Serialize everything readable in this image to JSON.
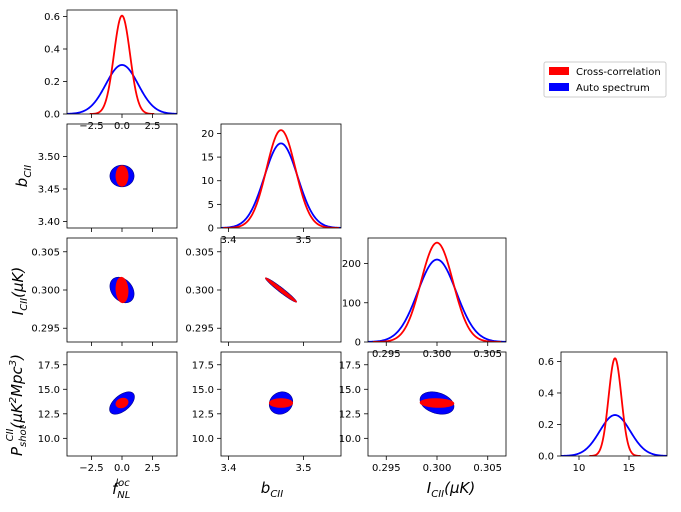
{
  "legend": {
    "placement": "upper-right",
    "entries": [
      {
        "label": "Cross-correlation",
        "color": "#ff0000"
      },
      {
        "label": "Auto spectrum",
        "color": "#0000ff"
      }
    ]
  },
  "axis_labels": {
    "f_nl_base": "f",
    "f_nl_sub": "NL",
    "f_nl_sup": "loc",
    "b_cii_base": "b",
    "b_cii_sub": "CII",
    "i_cii_base": "I",
    "i_cii_sub": "CII",
    "i_cii_unit": "(μK)",
    "p_shot_base": "P",
    "p_shot_sub": "shot",
    "p_shot_sup": "CII",
    "p_shot_unit_open": "(μK",
    "p_shot_unit_k_sup": "2",
    "p_shot_unit_mid": "Mpc",
    "p_shot_unit_mpc_sup": "3",
    "p_shot_unit_close": ")"
  },
  "chart_data": {
    "type": "corner",
    "parameters": [
      "f_NL^loc",
      "b_CII",
      "I_CII(μK)",
      "P_shot^CII(μK^2 Mpc^3)"
    ],
    "fiducial": {
      "f_nl": 0.0,
      "b_cii": 3.47,
      "i_cii": 0.3,
      "p_shot": 13.6
    },
    "diagonals": [
      {
        "param": "f_nl",
        "xlim": [
          -4.5,
          4.5
        ],
        "ylim": [
          0,
          0.64
        ],
        "xticks": [
          -2.5,
          0.0,
          2.5
        ],
        "xtick_labels": [
          "−2.5",
          "0.0",
          "2.5"
        ],
        "yticks": [
          0.0,
          0.2,
          0.4,
          0.6
        ],
        "ytick_labels": [
          "0.0",
          "0.2",
          "0.4",
          "0.6"
        ],
        "series": [
          {
            "name": "Cross-correlation",
            "color": "#ff0000",
            "mean": 0.0,
            "sigma": 0.66,
            "peak": 0.605
          },
          {
            "name": "Auto spectrum",
            "color": "#0000ff",
            "mean": 0.0,
            "sigma": 1.32,
            "peak": 0.302
          }
        ]
      },
      {
        "param": "b_cii",
        "xlim": [
          3.39,
          3.55
        ],
        "ylim": [
          0,
          22
        ],
        "xticks": [
          3.4,
          3.5
        ],
        "xtick_labels": [
          "3.4",
          "3.5"
        ],
        "yticks": [
          0,
          5,
          10,
          15,
          20
        ],
        "ytick_labels": [
          "0",
          "5",
          "10",
          "15",
          "20"
        ],
        "series": [
          {
            "name": "Cross-correlation",
            "color": "#ff0000",
            "mean": 3.47,
            "sigma": 0.0193,
            "peak": 20.7
          },
          {
            "name": "Auto spectrum",
            "color": "#0000ff",
            "mean": 3.47,
            "sigma": 0.0222,
            "peak": 17.9
          }
        ]
      },
      {
        "param": "i_cii",
        "xlim": [
          0.2932,
          0.3068
        ],
        "ylim": [
          0,
          265
        ],
        "xticks": [
          0.295,
          0.3,
          0.305
        ],
        "xtick_labels": [
          "0.295",
          "0.300",
          "0.305"
        ],
        "yticks": [
          0,
          100,
          200
        ],
        "ytick_labels": [
          "0",
          "100",
          "200"
        ],
        "series": [
          {
            "name": "Cross-correlation",
            "color": "#ff0000",
            "mean": 0.3,
            "sigma": 0.00158,
            "peak": 253
          },
          {
            "name": "Auto spectrum",
            "color": "#0000ff",
            "mean": 0.3,
            "sigma": 0.0019,
            "peak": 210
          }
        ]
      },
      {
        "param": "p_shot",
        "xlim": [
          8.2,
          18.8
        ],
        "ylim": [
          0,
          0.66
        ],
        "xticks": [
          10,
          15
        ],
        "xtick_labels": [
          "10",
          "15"
        ],
        "yticks": [
          0.0,
          0.2,
          0.4,
          0.6
        ],
        "ytick_labels": [
          "0.0",
          "0.2",
          "0.4",
          "0.6"
        ],
        "series": [
          {
            "name": "Cross-correlation",
            "color": "#ff0000",
            "mean": 13.6,
            "sigma": 0.64,
            "peak": 0.62
          },
          {
            "name": "Auto spectrum",
            "color": "#0000ff",
            "mean": 13.6,
            "sigma": 1.53,
            "peak": 0.26
          }
        ]
      }
    ],
    "offdiag_axes": {
      "f_nl": {
        "lim": [
          -4.5,
          4.5
        ],
        "ticks": [
          -2.5,
          0.0,
          2.5
        ],
        "tick_labels": [
          "−2.5",
          "0.0",
          "2.5"
        ]
      },
      "b_cii": {
        "lim": [
          3.39,
          3.55
        ],
        "ticks": [
          3.4,
          3.45,
          3.5
        ],
        "tick_labels": [
          "3.40",
          "3.45",
          "3.50"
        ]
      },
      "b_cii_x": {
        "lim": [
          3.39,
          3.55
        ],
        "ticks": [
          3.4,
          3.5
        ],
        "tick_labels": [
          "3.4",
          "3.5"
        ]
      },
      "i_cii": {
        "lim": [
          0.2932,
          0.3068
        ],
        "ticks": [
          0.295,
          0.3,
          0.305
        ],
        "tick_labels": [
          "0.295",
          "0.300",
          "0.305"
        ]
      },
      "p_shot": {
        "lim": [
          8.2,
          18.8
        ],
        "ticks": [
          10.0,
          12.5,
          15.0,
          17.5
        ],
        "tick_labels": [
          "10.0",
          "12.5",
          "15.0",
          "17.5"
        ]
      }
    },
    "ellipses": [
      {
        "x": "f_nl",
        "y": "b_cii",
        "auto": {
          "sx": 0.65,
          "sy": 0.011,
          "rho": 0.0
        },
        "cross": {
          "sx": 0.33,
          "sy": 0.0105,
          "rho": 0.0
        }
      },
      {
        "x": "f_nl",
        "y": "i_cii",
        "auto": {
          "sx": 0.65,
          "sy": 0.0011,
          "rho": -0.3
        },
        "cross": {
          "sx": 0.33,
          "sy": 0.0011,
          "rho": -0.1
        }
      },
      {
        "x": "b_cii",
        "y": "i_cii",
        "auto": {
          "sx": 0.0137,
          "sy": 0.00105,
          "rho": -0.97
        },
        "cross": {
          "sx": 0.0137,
          "sy": 0.00105,
          "rho": -0.985
        }
      },
      {
        "x": "f_nl",
        "y": "p_shot",
        "auto": {
          "sx": 0.67,
          "sy": 0.75,
          "rho": 0.55
        },
        "cross": {
          "sx": 0.33,
          "sy": 0.33,
          "rho": 0.2
        }
      },
      {
        "x": "b_cii",
        "y": "p_shot",
        "auto": {
          "sx": 0.0103,
          "sy": 0.75,
          "rho": 0.12
        },
        "cross": {
          "sx": 0.0103,
          "sy": 0.3,
          "rho": 0.0
        }
      },
      {
        "x": "i_cii",
        "y": "p_shot",
        "auto": {
          "sx": 0.0011,
          "sy": 0.75,
          "rho": -0.3
        },
        "cross": {
          "sx": 0.0011,
          "sy": 0.3,
          "rho": -0.1
        }
      }
    ]
  }
}
